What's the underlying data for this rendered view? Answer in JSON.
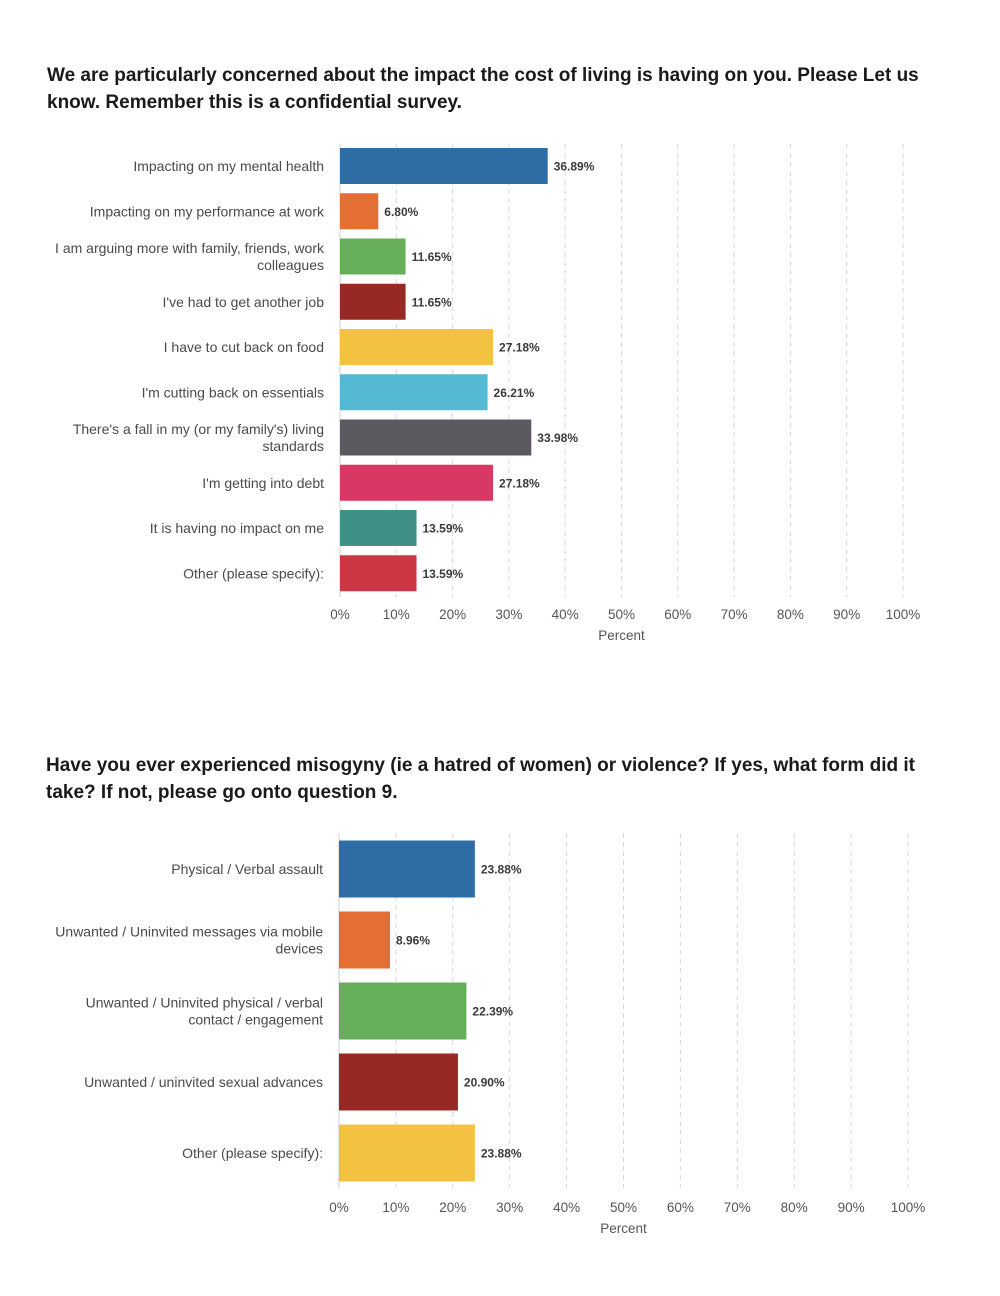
{
  "chart_data": [
    {
      "type": "bar",
      "orientation": "horizontal",
      "title": "We are particularly concerned about the impact the cost of living is having on you. Please Let us know. Remember this is a confidential survey.",
      "xlabel": "Percent",
      "xlim": [
        0,
        100
      ],
      "ticks": [
        "0%",
        "10%",
        "20%",
        "30%",
        "40%",
        "50%",
        "60%",
        "70%",
        "80%",
        "90%",
        "100%"
      ],
      "grid": true,
      "categories": [
        [
          "Impacting on my mental health"
        ],
        [
          "Impacting on my performance at work"
        ],
        [
          "I am arguing more with family, friends, work",
          "colleagues"
        ],
        [
          "I've had to get another job"
        ],
        [
          "I have to cut back on food"
        ],
        [
          "I'm cutting back on essentials"
        ],
        [
          "There's a fall in my (or my family's) living",
          "standards"
        ],
        [
          "I'm getting into debt"
        ],
        [
          "It is having no impact on me"
        ],
        [
          "Other (please specify):"
        ]
      ],
      "values": [
        36.89,
        6.8,
        11.65,
        11.65,
        27.18,
        26.21,
        33.98,
        27.18,
        13.59,
        13.59
      ],
      "value_labels": [
        "36.89%",
        "6.80%",
        "11.65%",
        "11.65%",
        "27.18%",
        "26.21%",
        "33.98%",
        "27.18%",
        "13.59%",
        "13.59%"
      ],
      "colors": [
        "#2e6ca4",
        "#e46f35",
        "#67ae5a",
        "#972824",
        "#f2c240",
        "#55b9d4",
        "#5c5a60",
        "#d73864",
        "#3f9086",
        "#cd3743"
      ]
    },
    {
      "type": "bar",
      "orientation": "horizontal",
      "title": "Have you ever experienced misogyny (ie a hatred of women) or violence? If yes, what form did it take? If not, please go onto question 9.",
      "xlabel": "Percent",
      "xlim": [
        0,
        100
      ],
      "ticks": [
        "0%",
        "10%",
        "20%",
        "30%",
        "40%",
        "50%",
        "60%",
        "70%",
        "80%",
        "90%",
        "100%"
      ],
      "grid": true,
      "categories": [
        [
          "Physical / Verbal assault"
        ],
        [
          "Unwanted / Uninvited messages via mobile",
          "devices"
        ],
        [
          "Unwanted / Uninvited physical / verbal",
          "contact / engagement"
        ],
        [
          "Unwanted / uninvited sexual advances"
        ],
        [
          "Other (please specify):"
        ]
      ],
      "values": [
        23.88,
        8.96,
        22.39,
        20.9,
        23.88
      ],
      "value_labels": [
        "23.88%",
        "8.96%",
        "22.39%",
        "20.90%",
        "23.88%"
      ],
      "colors": [
        "#2e6ca4",
        "#e46f35",
        "#67ae5a",
        "#972824",
        "#f2c240"
      ]
    }
  ]
}
